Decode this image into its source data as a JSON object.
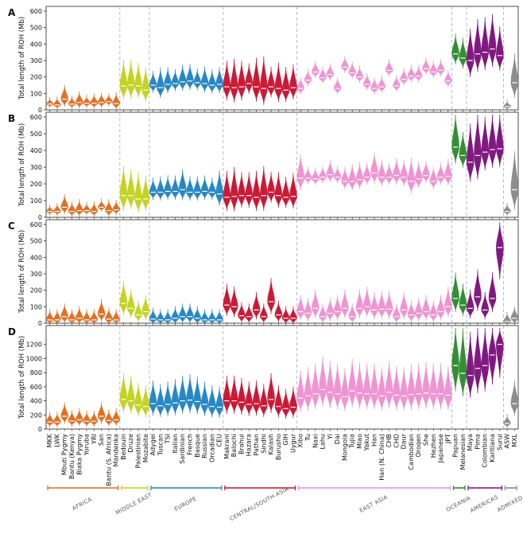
{
  "chart_data": {
    "type": "violin",
    "ylabel": "Total length of ROH (Mb)",
    "populations": [
      "MKK",
      "LWK",
      "Mbuti Pygmy",
      "Bantu (Kenya)",
      "Biaka Pygmy",
      "Yoruba",
      "YRI",
      "San",
      "Bantu (S. Africa)",
      "Mandenka",
      "Bedouin",
      "Druze",
      "Palestinian",
      "Mozabite",
      "Adygei",
      "Tuscan",
      "TSI",
      "Italian",
      "Sardinian",
      "French",
      "Basque",
      "Russian",
      "Orcadian",
      "CEU",
      "Makrani",
      "Balochi",
      "Brahui",
      "Hazara",
      "Pathan",
      "Sindhi",
      "Kalash",
      "Burusho",
      "GIH",
      "Uygur",
      "Xibo",
      "Tu",
      "Naxi",
      "Lahu",
      "Yi",
      "Dai",
      "Mongola",
      "Tujia",
      "Miao",
      "Yakut",
      "Han",
      "Han (N. China)",
      "CHB",
      "CHD",
      "Daur",
      "Cambodian",
      "Oroqen",
      "She",
      "Hezhen",
      "Japanese",
      "JPT",
      "Papuan",
      "Melanesian",
      "Maya",
      "Pima",
      "Colombian",
      "Karitiana",
      "Surui",
      "ASW",
      "MXL"
    ],
    "regions": [
      {
        "name": "Africa",
        "count": 10,
        "color": "#e06a1b"
      },
      {
        "name": "Middle East",
        "count": 4,
        "color": "#c2d11a"
      },
      {
        "name": "Europe",
        "count": 10,
        "color": "#1f83c2"
      },
      {
        "name": "Central/South Asia",
        "count": 10,
        "color": "#c8102e"
      },
      {
        "name": "East Asia",
        "count": 21,
        "color": "#ee8fd0"
      },
      {
        "name": "Oceania",
        "count": 2,
        "color": "#2a8a2a"
      },
      {
        "name": "Americas",
        "count": 5,
        "color": "#7b0f7b"
      },
      {
        "name": "Admixed",
        "count": 2,
        "color": "#888888"
      }
    ],
    "panels": [
      {
        "label": "A",
        "ylim": [
          0,
          600
        ],
        "yticks": [
          0,
          100,
          200,
          300,
          400,
          500,
          600
        ],
        "medians": [
          35,
          30,
          65,
          35,
          45,
          40,
          40,
          45,
          50,
          38,
          145,
          150,
          145,
          120,
          150,
          135,
          155,
          160,
          170,
          175,
          165,
          160,
          150,
          155,
          140,
          135,
          140,
          160,
          140,
          130,
          140,
          130,
          120,
          135,
          130,
          180,
          230,
          195,
          215,
          130,
          260,
          225,
          200,
          155,
          130,
          140,
          240,
          145,
          185,
          205,
          205,
          250,
          230,
          240,
          175,
          340,
          315,
          300,
          340,
          350,
          370,
          330,
          20,
          165
        ],
        "widths": [
          30,
          40,
          80,
          40,
          60,
          40,
          50,
          50,
          40,
          60,
          160,
          160,
          140,
          140,
          80,
          120,
          100,
          80,
          100,
          100,
          80,
          100,
          90,
          100,
          160,
          180,
          160,
          120,
          180,
          200,
          120,
          160,
          140,
          140,
          60,
          60,
          60,
          60,
          60,
          60,
          60,
          60,
          60,
          60,
          60,
          60,
          60,
          60,
          60,
          60,
          60,
          60,
          60,
          60,
          60,
          120,
          120,
          200,
          220,
          220,
          220,
          180,
          30,
          180
        ]
      },
      {
        "label": "B",
        "ylim": [
          0,
          600
        ],
        "yticks": [
          0,
          100,
          200,
          300,
          400,
          500,
          600
        ],
        "medians": [
          35,
          35,
          60,
          35,
          40,
          40,
          35,
          60,
          40,
          45,
          130,
          130,
          110,
          110,
          150,
          150,
          155,
          155,
          165,
          150,
          150,
          155,
          150,
          140,
          120,
          125,
          130,
          130,
          120,
          130,
          150,
          130,
          120,
          125,
          235,
          235,
          230,
          240,
          255,
          240,
          215,
          215,
          225,
          240,
          265,
          240,
          240,
          250,
          240,
          215,
          230,
          250,
          215,
          240,
          245,
          420,
          370,
          330,
          370,
          390,
          405,
          410,
          35,
          165
        ],
        "widths": [
          30,
          40,
          70,
          50,
          60,
          40,
          50,
          40,
          60,
          50,
          180,
          160,
          160,
          140,
          80,
          90,
          90,
          90,
          120,
          90,
          90,
          90,
          80,
          140,
          160,
          180,
          140,
          140,
          160,
          180,
          120,
          140,
          120,
          140,
          140,
          60,
          60,
          60,
          80,
          60,
          80,
          100,
          100,
          80,
          120,
          100,
          80,
          100,
          100,
          140,
          100,
          80,
          80,
          80,
          100,
          200,
          140,
          240,
          300,
          220,
          220,
          220,
          40,
          240
        ]
      },
      {
        "label": "C",
        "ylim": [
          0,
          600
        ],
        "yticks": [
          0,
          100,
          200,
          300,
          400,
          500,
          600
        ],
        "medians": [
          20,
          20,
          40,
          20,
          30,
          20,
          20,
          55,
          25,
          20,
          120,
          90,
          50,
          70,
          25,
          20,
          20,
          30,
          40,
          40,
          30,
          20,
          20,
          20,
          110,
          100,
          45,
          40,
          80,
          40,
          130,
          50,
          30,
          30,
          70,
          60,
          90,
          40,
          60,
          70,
          90,
          40,
          90,
          100,
          80,
          85,
          85,
          40,
          80,
          50,
          60,
          70,
          50,
          70,
          100,
          150,
          110,
          90,
          160,
          80,
          150,
          460,
          10,
          30
        ]
      },
      {
        "label": "D",
        "ylim": [
          0,
          1400
        ],
        "yticks": [
          0,
          200,
          400,
          600,
          800,
          1000,
          1200
        ],
        "medians": [
          100,
          100,
          180,
          115,
          130,
          110,
          110,
          180,
          120,
          130,
          420,
          400,
          340,
          320,
          360,
          330,
          350,
          370,
          400,
          410,
          390,
          350,
          320,
          310,
          400,
          400,
          380,
          350,
          360,
          330,
          420,
          320,
          290,
          310,
          440,
          470,
          500,
          560,
          520,
          500,
          460,
          540,
          510,
          500,
          500,
          470,
          520,
          480,
          470,
          490,
          500,
          510,
          500,
          500,
          480,
          900,
          790,
          760,
          860,
          900,
          1050,
          1200,
          80,
          360
        ]
      }
    ]
  }
}
